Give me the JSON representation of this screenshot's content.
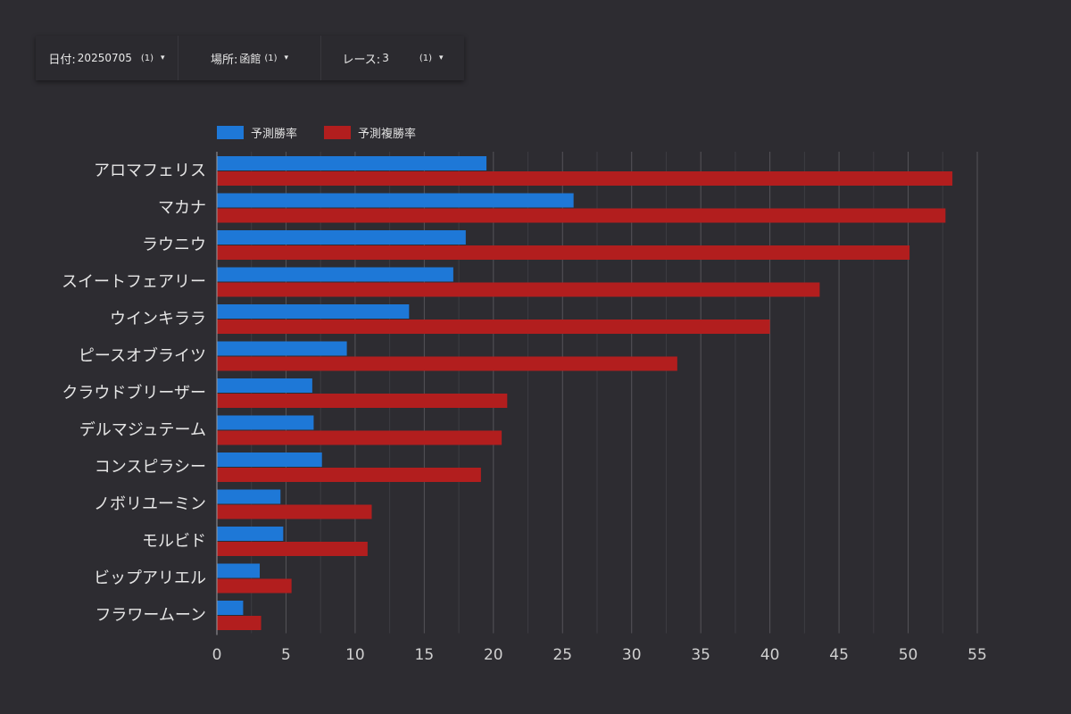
{
  "filters": [
    {
      "label": "日付:",
      "value": "20250705",
      "count": "(1)",
      "caret": "▾"
    },
    {
      "label": "場所:",
      "value": "函館",
      "count": "(1)",
      "caret": "▾"
    },
    {
      "label": "レース:",
      "value": "3",
      "count": "(1)",
      "caret": "▾"
    }
  ],
  "chart_data": {
    "type": "bar",
    "orientation": "horizontal",
    "categories": [
      "アロマフェリス",
      "マカナ",
      "ラウニウ",
      "スイートフェアリー",
      "ウインキララ",
      "ピースオブライツ",
      "クラウドブリーザー",
      "デルマジュテーム",
      "コンスピラシー",
      "ノボリユーミン",
      "モルビド",
      "ビップアリエル",
      "フラワームーン"
    ],
    "series": [
      {
        "name": "予測勝率",
        "color": "#1e78d7",
        "values": [
          19.5,
          25.8,
          18.0,
          17.1,
          13.9,
          9.4,
          6.9,
          7.0,
          7.6,
          4.6,
          4.8,
          3.1,
          1.9
        ]
      },
      {
        "name": "予測複勝率",
        "color": "#b21e1e",
        "values": [
          53.2,
          52.7,
          50.1,
          43.6,
          40.0,
          33.3,
          21.0,
          20.6,
          19.1,
          11.2,
          10.9,
          5.4,
          3.2
        ]
      }
    ],
    "xlim": [
      0,
      55
    ],
    "xticks": [
      0,
      5,
      10,
      15,
      20,
      25,
      30,
      35,
      40,
      45,
      50,
      55
    ],
    "grid": true,
    "legend": "top-left"
  }
}
